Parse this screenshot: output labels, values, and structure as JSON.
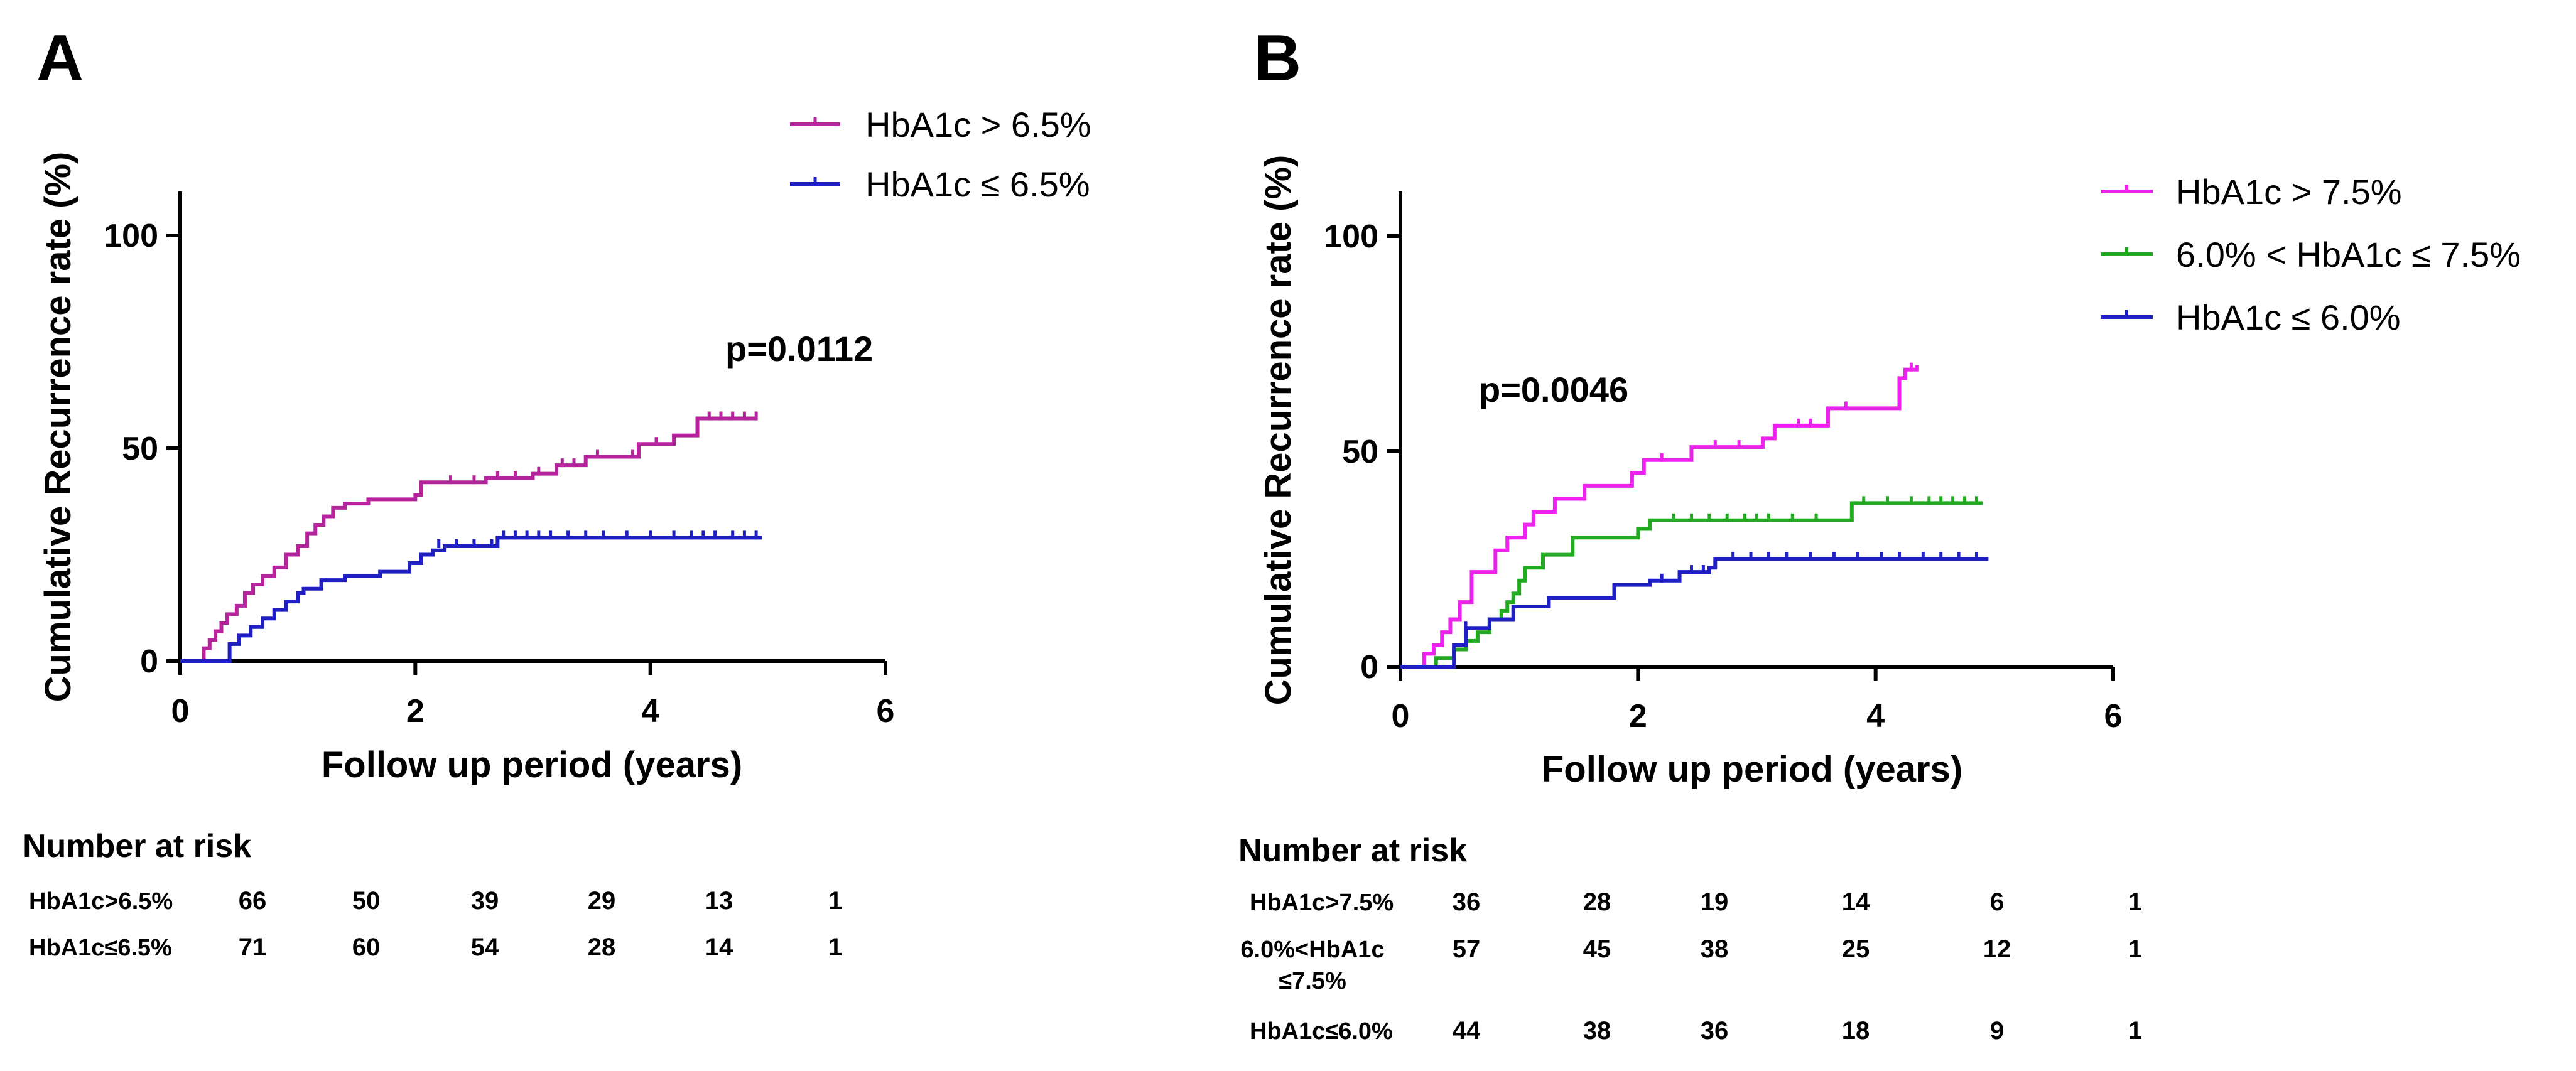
{
  "chart_data": [
    {
      "type": "line",
      "panel": "A",
      "xlabel": "Follow up period (years)",
      "ylabel": "Cumulative Recurrence rate (%)",
      "xlim": [
        0,
        6
      ],
      "ylim": [
        0,
        110
      ],
      "xticks": [
        "0",
        "2",
        "4",
        "6"
      ],
      "yticks": [
        "0",
        "50",
        "100"
      ],
      "pvalue": "p=0.0112",
      "series": [
        {
          "name": "HbA1c > 6.5%",
          "color": "#b5249c",
          "x": [
            0,
            0.15,
            0.2,
            0.25,
            0.3,
            0.35,
            0.4,
            0.48,
            0.55,
            0.62,
            0.7,
            0.8,
            0.9,
            1.0,
            1.08,
            1.15,
            1.22,
            1.3,
            1.4,
            1.6,
            1.85,
            2.0,
            2.05,
            2.25,
            2.6,
            3.0,
            3.2,
            3.45,
            3.75,
            3.9,
            4.2,
            4.4,
            4.9
          ],
          "values": [
            0,
            0,
            3,
            5,
            7,
            9,
            11,
            13,
            16,
            18,
            20,
            22,
            25,
            27,
            30,
            32,
            34,
            36,
            37,
            38,
            38,
            39,
            42,
            42,
            43,
            44,
            46,
            48,
            48,
            51,
            53,
            57,
            57
          ],
          "censored": [
            [
              2.3,
              42
            ],
            [
              2.5,
              42
            ],
            [
              2.7,
              43
            ],
            [
              2.85,
              43
            ],
            [
              3.05,
              44
            ],
            [
              3.25,
              46
            ],
            [
              3.35,
              46
            ],
            [
              3.55,
              48
            ],
            [
              3.85,
              48
            ],
            [
              4.05,
              51
            ],
            [
              4.5,
              57
            ],
            [
              4.6,
              57
            ],
            [
              4.7,
              57
            ],
            [
              4.8,
              57
            ],
            [
              4.9,
              57
            ]
          ]
        },
        {
          "name": "HbA1c ≤ 6.5%",
          "color": "#1f1fc4",
          "x": [
            0,
            0.38,
            0.42,
            0.5,
            0.6,
            0.7,
            0.8,
            0.9,
            1.0,
            1.05,
            1.2,
            1.4,
            1.7,
            1.95,
            2.05,
            2.15,
            2.25,
            2.55,
            2.7,
            4.95
          ],
          "values": [
            0,
            0,
            4,
            6,
            8,
            10,
            12,
            14,
            16,
            17,
            19,
            20,
            21,
            23,
            25,
            26,
            27,
            27,
            29,
            29
          ],
          "censored": [
            [
              2.2,
              27
            ],
            [
              2.35,
              27
            ],
            [
              2.5,
              27
            ],
            [
              2.65,
              27
            ],
            [
              2.75,
              29
            ],
            [
              2.85,
              29
            ],
            [
              2.95,
              29
            ],
            [
              3.05,
              29
            ],
            [
              3.15,
              29
            ],
            [
              3.3,
              29
            ],
            [
              3.45,
              29
            ],
            [
              3.6,
              29
            ],
            [
              3.8,
              29
            ],
            [
              4.0,
              29
            ],
            [
              4.2,
              29
            ],
            [
              4.35,
              29
            ],
            [
              4.45,
              29
            ],
            [
              4.55,
              29
            ],
            [
              4.7,
              29
            ],
            [
              4.8,
              29
            ],
            [
              4.9,
              29
            ]
          ]
        }
      ],
      "risk_table": {
        "title": "Number at risk",
        "rows": [
          {
            "label": "HbA1c>6.5%",
            "values": [
              "66",
              "50",
              "39",
              "29",
              "13",
              "1"
            ]
          },
          {
            "label": "HbA1c≤6.5%",
            "values": [
              "71",
              "60",
              "54",
              "28",
              "14",
              "1"
            ]
          }
        ]
      }
    },
    {
      "type": "line",
      "panel": "B",
      "xlabel": "Follow up period (years)",
      "ylabel": "Cumulative Recurrence rate (%)",
      "xlim": [
        0,
        6
      ],
      "ylim": [
        0,
        110
      ],
      "xticks": [
        "0",
        "2",
        "4",
        "6"
      ],
      "yticks": [
        "0",
        "50",
        "100"
      ],
      "pvalue": "p=0.0046",
      "series": [
        {
          "name": "HbA1c > 7.5%",
          "color": "#ee22ee",
          "x": [
            0,
            0.15,
            0.2,
            0.28,
            0.35,
            0.42,
            0.5,
            0.6,
            0.8,
            0.9,
            1.05,
            1.12,
            1.3,
            1.55,
            1.95,
            2.05,
            2.45,
            3.05,
            3.15,
            3.6,
            3.95,
            4.2,
            4.25,
            4.35
          ],
          "values": [
            0,
            0,
            3,
            5,
            8,
            11,
            15,
            22,
            27,
            30,
            33,
            36,
            39,
            42,
            45,
            48,
            51,
            53,
            56,
            60,
            60,
            67,
            69,
            70
          ],
          "censored": [
            [
              2.2,
              48
            ],
            [
              2.65,
              51
            ],
            [
              2.85,
              51
            ],
            [
              3.35,
              56
            ],
            [
              3.45,
              56
            ],
            [
              3.75,
              60
            ],
            [
              4.3,
              69
            ]
          ]
        },
        {
          "name": "6.0% < HbA1c ≤ 7.5%",
          "color": "#22aa22",
          "x": [
            0,
            0.25,
            0.3,
            0.45,
            0.55,
            0.65,
            0.75,
            0.85,
            0.9,
            0.95,
            1.0,
            1.05,
            1.2,
            1.45,
            1.95,
            2.0,
            2.1,
            3.75,
            3.8,
            4.9
          ],
          "values": [
            0,
            0,
            2,
            4,
            6,
            8,
            11,
            13,
            15,
            17,
            20,
            23,
            26,
            30,
            30,
            32,
            34,
            34,
            38,
            38
          ],
          "censored": [
            [
              2.3,
              34
            ],
            [
              2.45,
              34
            ],
            [
              2.6,
              34
            ],
            [
              2.75,
              34
            ],
            [
              2.9,
              34
            ],
            [
              3.0,
              34
            ],
            [
              3.1,
              34
            ],
            [
              3.3,
              34
            ],
            [
              3.5,
              34
            ],
            [
              3.9,
              38
            ],
            [
              4.1,
              38
            ],
            [
              4.3,
              38
            ],
            [
              4.45,
              38
            ],
            [
              4.55,
              38
            ],
            [
              4.65,
              38
            ],
            [
              4.75,
              38
            ],
            [
              4.85,
              38
            ]
          ]
        },
        {
          "name": "HbA1c ≤ 6.0%",
          "color": "#1f1fc4",
          "x": [
            0,
            0.42,
            0.45,
            0.55,
            0.75,
            0.95,
            1.25,
            1.8,
            2.1,
            2.35,
            2.6,
            2.65,
            4.95
          ],
          "values": [
            0,
            0,
            5,
            9,
            11,
            14,
            16,
            19,
            20,
            22,
            23,
            25,
            25
          ],
          "censored": [
            [
              0.55,
              9
            ],
            [
              2.2,
              20
            ],
            [
              2.45,
              22
            ],
            [
              2.55,
              22
            ],
            [
              2.8,
              25
            ],
            [
              2.95,
              25
            ],
            [
              3.1,
              25
            ],
            [
              3.25,
              25
            ],
            [
              3.45,
              25
            ],
            [
              3.65,
              25
            ],
            [
              3.85,
              25
            ],
            [
              4.05,
              25
            ],
            [
              4.2,
              25
            ],
            [
              4.4,
              25
            ],
            [
              4.55,
              25
            ],
            [
              4.7,
              25
            ],
            [
              4.85,
              25
            ]
          ]
        }
      ],
      "risk_table": {
        "title": "Number at risk",
        "rows": [
          {
            "label": "HbA1c>7.5%",
            "values": [
              "36",
              "28",
              "19",
              "14",
              "6",
              "1"
            ]
          },
          {
            "label_lines": [
              "6.0%<HbA1c",
              "≤7.5%"
            ],
            "values": [
              "57",
              "45",
              "38",
              "25",
              "12",
              "1"
            ]
          },
          {
            "label": "HbA1c≤6.0%",
            "values": [
              "44",
              "38",
              "36",
              "18",
              "9",
              "1"
            ]
          }
        ]
      }
    }
  ]
}
